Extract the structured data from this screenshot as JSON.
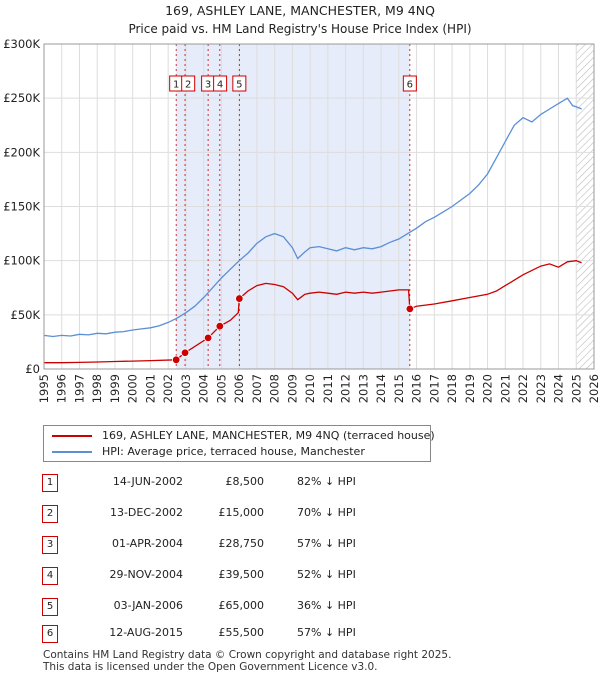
{
  "chart_data": {
    "type": "line",
    "title": "169, ASHLEY LANE, MANCHESTER, M9 4NQ",
    "subtitle": "Price paid vs. HM Land Registry's House Price Index (HPI)",
    "xlim": [
      1995,
      2026
    ],
    "ylim": [
      0,
      300000
    ],
    "y_ticks": [
      0,
      50000,
      100000,
      150000,
      200000,
      250000,
      300000
    ],
    "y_tick_labels": [
      "£0",
      "£50K",
      "£100K",
      "£150K",
      "£200K",
      "£250K",
      "£300K"
    ],
    "x_ticks": [
      1995,
      1996,
      1997,
      1998,
      1999,
      2000,
      2001,
      2002,
      2003,
      2004,
      2005,
      2006,
      2007,
      2008,
      2009,
      2010,
      2011,
      2012,
      2013,
      2014,
      2015,
      2016,
      2017,
      2018,
      2019,
      2020,
      2021,
      2022,
      2023,
      2024,
      2025,
      2026
    ],
    "x_tick_labels": [
      "1995",
      "1996",
      "1997",
      "1998",
      "1999",
      "2000",
      "2001",
      "2002",
      "2003",
      "2004",
      "2005",
      "2006",
      "2007",
      "2008",
      "2009",
      "2010",
      "2011",
      "2012",
      "2013",
      "2014",
      "2015",
      "2016",
      "2017",
      "2018",
      "2019",
      "2020",
      "2021",
      "2022",
      "2023",
      "2024",
      "2025",
      "2026"
    ],
    "grid": true,
    "shaded_range": [
      2002.45,
      2015.62
    ],
    "hatched_from": 2025.0,
    "series": [
      {
        "name": "169, ASHLEY LANE, MANCHESTER, M9 4NQ (terraced house)",
        "color": "#cc0000",
        "points": [
          [
            1995.0,
            5800
          ],
          [
            1996.0,
            5800
          ],
          [
            1997.0,
            6100
          ],
          [
            1998.0,
            6500
          ],
          [
            1999.0,
            6900
          ],
          [
            2000.0,
            7300
          ],
          [
            2001.0,
            7800
          ],
          [
            2002.45,
            8500
          ],
          [
            2002.95,
            15000
          ],
          [
            2004.25,
            28750
          ],
          [
            2004.91,
            39500
          ],
          [
            2005.5,
            45000
          ],
          [
            2005.95,
            52000
          ],
          [
            2006.01,
            65000
          ],
          [
            2006.5,
            72000
          ],
          [
            2007.0,
            77000
          ],
          [
            2007.5,
            79000
          ],
          [
            2008.0,
            78000
          ],
          [
            2008.5,
            76000
          ],
          [
            2009.0,
            70000
          ],
          [
            2009.3,
            64000
          ],
          [
            2009.7,
            69000
          ],
          [
            2010.0,
            70000
          ],
          [
            2010.5,
            71000
          ],
          [
            2011.0,
            70000
          ],
          [
            2011.5,
            69000
          ],
          [
            2012.0,
            71000
          ],
          [
            2012.5,
            70000
          ],
          [
            2013.0,
            71000
          ],
          [
            2013.5,
            70000
          ],
          [
            2014.0,
            71000
          ],
          [
            2014.5,
            72000
          ],
          [
            2015.0,
            73000
          ],
          [
            2015.55,
            73000
          ],
          [
            2015.62,
            55500
          ],
          [
            2016.0,
            58000
          ],
          [
            2017.0,
            60000
          ],
          [
            2018.0,
            63000
          ],
          [
            2019.0,
            66000
          ],
          [
            2020.0,
            69000
          ],
          [
            2020.5,
            72000
          ],
          [
            2021.0,
            77000
          ],
          [
            2021.5,
            82000
          ],
          [
            2022.0,
            87000
          ],
          [
            2022.5,
            91000
          ],
          [
            2023.0,
            95000
          ],
          [
            2023.5,
            97000
          ],
          [
            2024.0,
            94000
          ],
          [
            2024.5,
            99000
          ],
          [
            2025.0,
            100000
          ],
          [
            2025.3,
            98000
          ]
        ]
      },
      {
        "name": "HPI: Average price, terraced house, Manchester",
        "color": "#5b8fd6",
        "points": [
          [
            1995.0,
            31000
          ],
          [
            1995.5,
            30000
          ],
          [
            1996.0,
            31000
          ],
          [
            1996.5,
            30500
          ],
          [
            1997.0,
            32000
          ],
          [
            1997.5,
            31500
          ],
          [
            1998.0,
            33000
          ],
          [
            1998.5,
            32500
          ],
          [
            1999.0,
            34000
          ],
          [
            1999.5,
            34500
          ],
          [
            2000.0,
            36000
          ],
          [
            2000.5,
            37000
          ],
          [
            2001.0,
            38000
          ],
          [
            2001.5,
            40000
          ],
          [
            2002.0,
            43000
          ],
          [
            2002.5,
            47000
          ],
          [
            2003.0,
            52000
          ],
          [
            2003.5,
            58000
          ],
          [
            2004.0,
            66000
          ],
          [
            2004.5,
            75000
          ],
          [
            2005.0,
            84000
          ],
          [
            2005.5,
            92000
          ],
          [
            2006.0,
            100000
          ],
          [
            2006.5,
            107000
          ],
          [
            2007.0,
            116000
          ],
          [
            2007.5,
            122000
          ],
          [
            2008.0,
            125000
          ],
          [
            2008.5,
            122000
          ],
          [
            2009.0,
            112000
          ],
          [
            2009.3,
            102000
          ],
          [
            2009.7,
            108000
          ],
          [
            2010.0,
            112000
          ],
          [
            2010.5,
            113000
          ],
          [
            2011.0,
            111000
          ],
          [
            2011.5,
            109000
          ],
          [
            2012.0,
            112000
          ],
          [
            2012.5,
            110000
          ],
          [
            2013.0,
            112000
          ],
          [
            2013.5,
            111000
          ],
          [
            2014.0,
            113000
          ],
          [
            2014.5,
            117000
          ],
          [
            2015.0,
            120000
          ],
          [
            2015.5,
            125000
          ],
          [
            2016.0,
            130000
          ],
          [
            2016.5,
            136000
          ],
          [
            2017.0,
            140000
          ],
          [
            2017.5,
            145000
          ],
          [
            2018.0,
            150000
          ],
          [
            2018.5,
            156000
          ],
          [
            2019.0,
            162000
          ],
          [
            2019.5,
            170000
          ],
          [
            2020.0,
            180000
          ],
          [
            2020.5,
            195000
          ],
          [
            2021.0,
            210000
          ],
          [
            2021.5,
            225000
          ],
          [
            2022.0,
            232000
          ],
          [
            2022.5,
            228000
          ],
          [
            2023.0,
            235000
          ],
          [
            2023.5,
            240000
          ],
          [
            2024.0,
            245000
          ],
          [
            2024.5,
            250000
          ],
          [
            2024.8,
            243000
          ],
          [
            2025.0,
            242000
          ],
          [
            2025.3,
            240000
          ]
        ]
      }
    ],
    "sales": [
      {
        "num": "1",
        "date": "14-JUN-2002",
        "price": "£8,500",
        "hpi": "82% ↓ HPI",
        "x": 2002.45,
        "value": 8500
      },
      {
        "num": "2",
        "date": "13-DEC-2002",
        "price": "£15,000",
        "hpi": "70% ↓ HPI",
        "x": 2002.95,
        "value": 15000
      },
      {
        "num": "3",
        "date": "01-APR-2004",
        "price": "£28,750",
        "hpi": "57% ↓ HPI",
        "x": 2004.25,
        "value": 28750
      },
      {
        "num": "4",
        "date": "29-NOV-2004",
        "price": "£39,500",
        "hpi": "52% ↓ HPI",
        "x": 2004.91,
        "value": 39500
      },
      {
        "num": "5",
        "date": "03-JAN-2006",
        "price": "£65,000",
        "hpi": "36% ↓ HPI",
        "x": 2006.01,
        "value": 65000
      },
      {
        "num": "6",
        "date": "12-AUG-2015",
        "price": "£55,500",
        "hpi": "57% ↓ HPI",
        "x": 2015.62,
        "value": 55500
      }
    ]
  },
  "legend": {
    "property_label": "169, ASHLEY LANE, MANCHESTER, M9 4NQ (terraced house)",
    "hpi_label": "HPI: Average price, terraced house, Manchester"
  },
  "footer": {
    "line1": "Contains HM Land Registry data © Crown copyright and database right 2025.",
    "line2": "This data is licensed under the Open Government Licence v3.0."
  }
}
